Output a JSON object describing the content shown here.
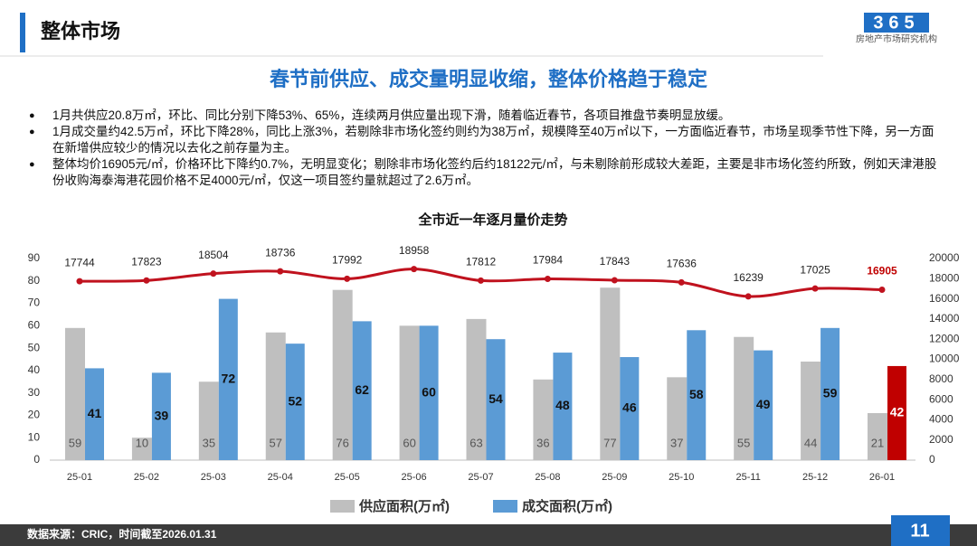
{
  "header": {
    "title": "整体市场",
    "logo_number": "365",
    "logo_text": "房地产市场研究机构"
  },
  "subtitle": "春节前供应、成交量明显收缩，整体价格趋于稳定",
  "bullets": [
    "1月共供应20.8万㎡，环比、同比分别下降53%、65%，连续两月供应量出现下滑，随着临近春节，各项目推盘节奏明显放缓。",
    "1月成交量约42.5万㎡，环比下降28%，同比上涨3%，若剔除非市场化签约则约为38万㎡，规模降至40万㎡以下，一方面临近春节，市场呈现季节性下降，另一方面在新增供应较少的情况以去化之前存量为主。",
    "整体均价16905元/㎡，价格环比下降约0.7%，无明显变化；剔除非市场化签约后约18122元/㎡，与未剔除前形成较大差距，主要是非市场化签约所致，例如天津港股份收购海泰海港花园价格不足4000元/㎡，仅这一项目签约量就超过了2.6万㎡。"
  ],
  "chart_data": {
    "type": "bar_line",
    "title": "全市近一年逐月量价走势",
    "categories": [
      "25-01",
      "25-02",
      "25-03",
      "25-04",
      "25-05",
      "25-06",
      "25-07",
      "25-08",
      "25-09",
      "25-10",
      "25-11",
      "25-12",
      "26-01"
    ],
    "series": [
      {
        "name": "供应面积(万㎡)",
        "color": "#bfbfbf",
        "values": [
          59,
          10,
          35,
          57,
          76,
          60,
          63,
          36,
          77,
          37,
          55,
          44,
          21
        ]
      },
      {
        "name": "成交面积(万㎡)",
        "color": "#5b9bd5",
        "colors": [
          "#5b9bd5",
          "#5b9bd5",
          "#5b9bd5",
          "#5b9bd5",
          "#5b9bd5",
          "#5b9bd5",
          "#5b9bd5",
          "#5b9bd5",
          "#5b9bd5",
          "#5b9bd5",
          "#5b9bd5",
          "#5b9bd5",
          "#c00000"
        ],
        "values": [
          41,
          39,
          72,
          52,
          62,
          60,
          54,
          48,
          46,
          58,
          49,
          59,
          42
        ]
      },
      {
        "type": "line",
        "axis": "y2",
        "color": "#c0121e",
        "label_colors": [
          "#222",
          "#222",
          "#222",
          "#222",
          "#222",
          "#222",
          "#222",
          "#222",
          "#222",
          "#222",
          "#222",
          "#222",
          "#c00000"
        ],
        "values": [
          17744,
          17823,
          18504,
          18736,
          17992,
          18958,
          17812,
          17984,
          17843,
          17636,
          16239,
          17025,
          16905
        ]
      }
    ],
    "ylim": [
      0,
      90
    ],
    "yticks": [
      0,
      10,
      20,
      30,
      40,
      50,
      60,
      70,
      80,
      90
    ],
    "y2lim": [
      0,
      20000
    ],
    "y2ticks": [
      0,
      2000,
      4000,
      6000,
      8000,
      10000,
      12000,
      14000,
      16000,
      18000,
      20000
    ],
    "legend": "bottom"
  },
  "footer": {
    "source": "数据来源：CRIC，时间截至2026.01.31",
    "page": "11"
  }
}
